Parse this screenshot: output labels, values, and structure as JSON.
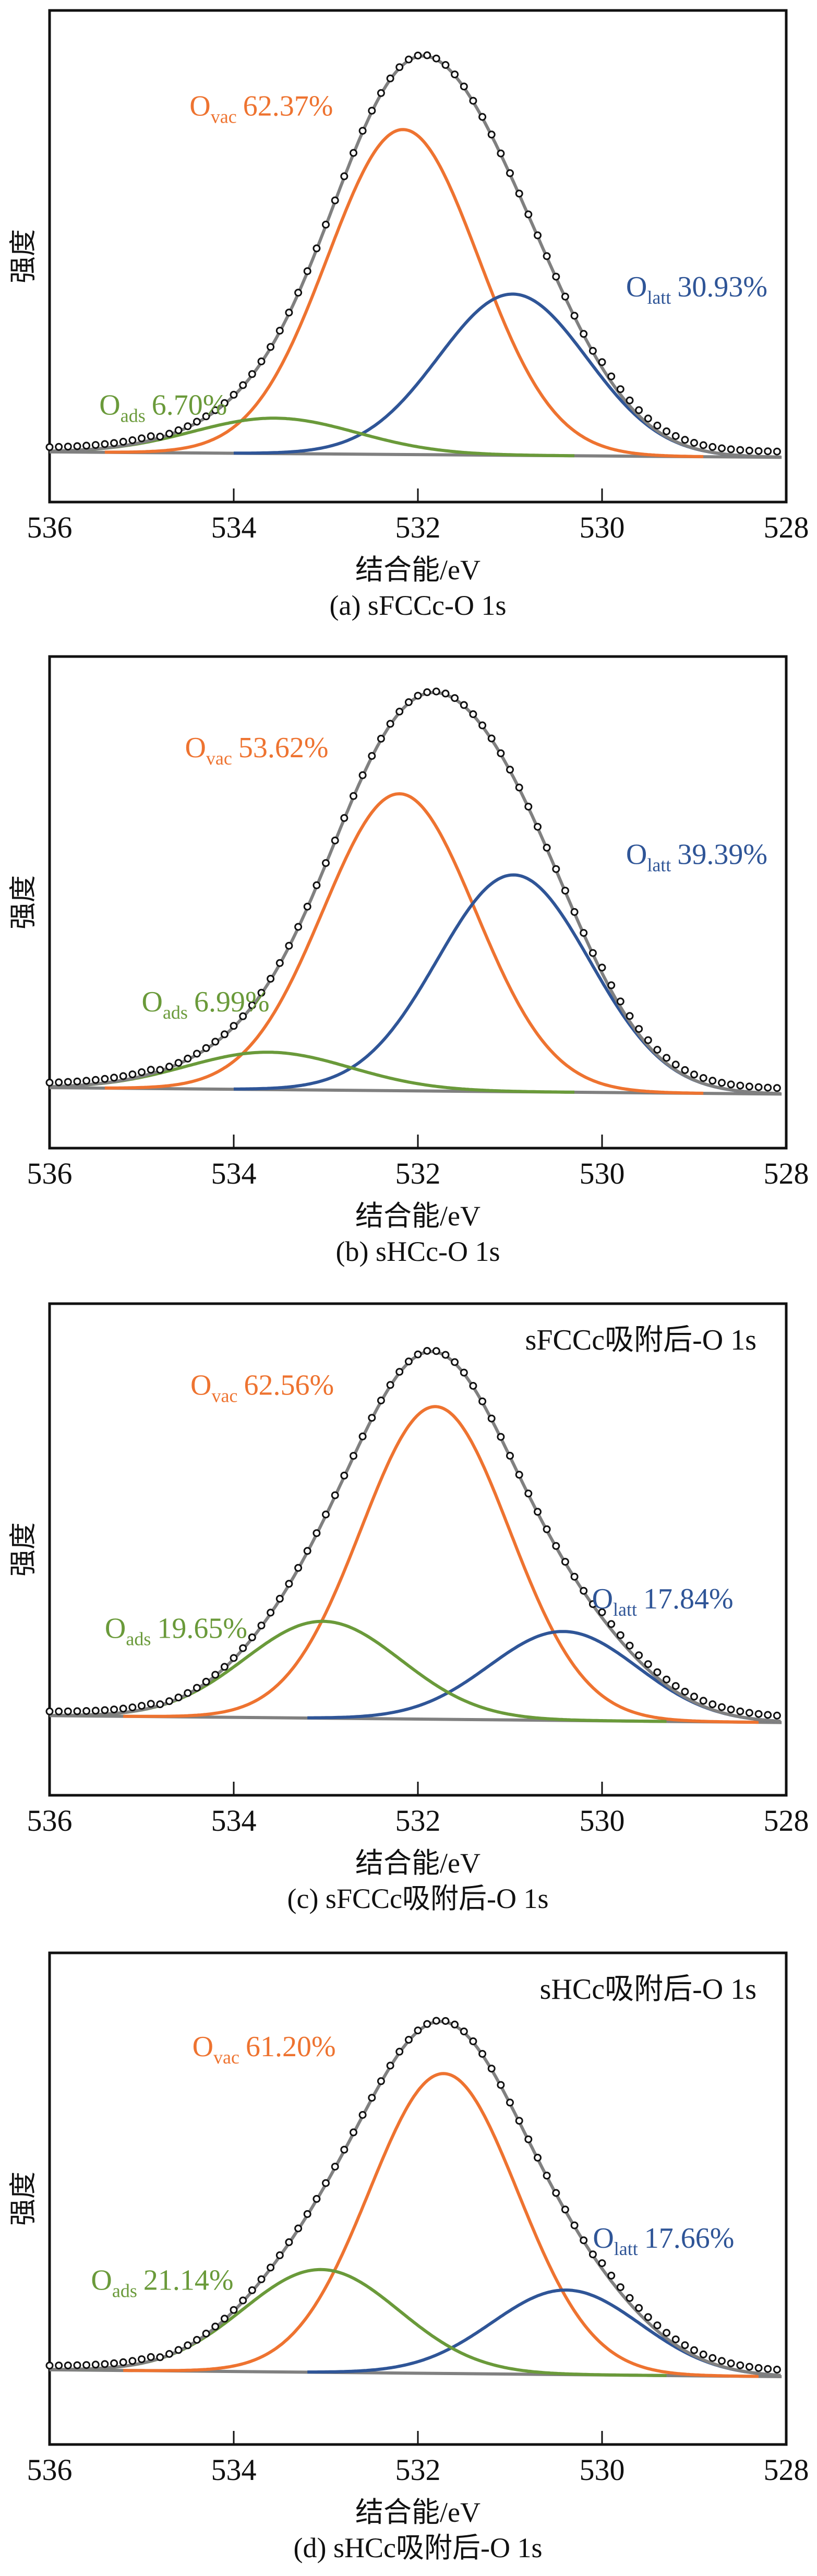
{
  "figure": {
    "panel_count": 4
  },
  "chart_data": [
    {
      "id": "a",
      "type": "line",
      "title": "",
      "caption": "(a) sFCCc-O 1s",
      "annotation": "",
      "xlabel": "结合能/eV",
      "ylabel": "强度",
      "xlim": [
        536,
        528
      ],
      "x_reversed": true,
      "ylim": [
        0,
        100
      ],
      "y_units": "relative intensity (a.u., no ticks)",
      "xticks": [
        536,
        534,
        532,
        530,
        528
      ],
      "xtick_labels": [
        "536",
        "534",
        "532",
        "530",
        "528"
      ],
      "grid": false,
      "baseline": {
        "x": [
          536,
          528.05
        ],
        "y": [
          10.2,
          9.1
        ]
      },
      "measured_points": {
        "x_start": 536.0,
        "x_end": 528.05,
        "step": 0.1,
        "marker": "open-circle"
      },
      "series": [
        {
          "name": "O_vac",
          "label_main": "O",
          "label_sub": "vac",
          "label_value": "62.37%",
          "color": "#EE7330",
          "center_eV": 532.16,
          "height": 66.1,
          "fwhm_eV": 1.93,
          "x_range": [
            535.4,
            528.9
          ]
        },
        {
          "name": "O_latt",
          "label_main": "O",
          "label_sub": "latt",
          "label_value": "30.93%",
          "color": "#2F5597",
          "center_eV": 530.97,
          "height": 32.8,
          "fwhm_eV": 1.9,
          "x_range": [
            534.0,
            528.4
          ]
        },
        {
          "name": "O_ads",
          "label_main": "O",
          "label_sub": "ads",
          "label_value": "6.70%",
          "color": "#6A9A3A",
          "center_eV": 533.55,
          "height": 7.2,
          "fwhm_eV": 2.1,
          "x_range": [
            535.6,
            530.3
          ]
        },
        {
          "name": "envelope",
          "color": "#808080",
          "type": "fit-sum"
        }
      ],
      "label_positions_eV": {
        "O_vac": [
          534.48,
          78.6
        ],
        "O_latt": [
          529.74,
          41.8
        ],
        "O_ads": [
          535.46,
          17.8
        ]
      }
    },
    {
      "id": "b",
      "type": "line",
      "title": "",
      "caption": "(b) sHCc-O 1s",
      "annotation": "",
      "xlabel": "结合能/eV",
      "ylabel": "强度",
      "xlim": [
        536,
        528
      ],
      "x_reversed": true,
      "ylim": [
        0,
        100
      ],
      "y_units": "relative intensity (a.u., no ticks)",
      "xticks": [
        536,
        534,
        532,
        530,
        528
      ],
      "xtick_labels": [
        "536",
        "534",
        "532",
        "530",
        "528"
      ],
      "grid": false,
      "baseline": {
        "x": [
          536,
          528.05
        ],
        "y": [
          12.3,
          11.0
        ]
      },
      "measured_points": {
        "x_start": 536.0,
        "x_end": 528.05,
        "step": 0.1,
        "marker": "open-circle"
      },
      "series": [
        {
          "name": "O_vac",
          "label_main": "O",
          "label_sub": "vac",
          "label_value": "53.62%",
          "color": "#EE7330",
          "center_eV": 532.2,
          "height": 60.4,
          "fwhm_eV": 1.95,
          "x_range": [
            535.4,
            528.9
          ]
        },
        {
          "name": "O_latt",
          "label_main": "O",
          "label_sub": "latt",
          "label_value": "39.39%",
          "color": "#2F5597",
          "center_eV": 530.96,
          "height": 44.1,
          "fwhm_eV": 1.95,
          "x_range": [
            534.0,
            528.4
          ]
        },
        {
          "name": "O_ads",
          "label_main": "O",
          "label_sub": "ads",
          "label_value": "6.99%",
          "color": "#6A9A3A",
          "center_eV": 533.62,
          "height": 7.6,
          "fwhm_eV": 2.1,
          "x_range": [
            535.6,
            530.3
          ]
        },
        {
          "name": "envelope",
          "color": "#808080",
          "type": "fit-sum"
        }
      ],
      "label_positions_eV": {
        "O_vac": [
          534.53,
          79.5
        ],
        "O_latt": [
          529.74,
          57.8
        ],
        "O_ads": [
          535.0,
          27.8
        ]
      }
    },
    {
      "id": "c",
      "type": "line",
      "title": "",
      "caption": "(c) sFCCc吸附后-O 1s",
      "annotation": "sFCCc吸附后-O 1s",
      "xlabel": "结合能/eV",
      "ylabel": "强度",
      "xlim": [
        536,
        528
      ],
      "x_reversed": true,
      "ylim": [
        0,
        100
      ],
      "y_units": "relative intensity (a.u., no ticks)",
      "xticks": [
        536,
        534,
        532,
        530,
        528
      ],
      "xtick_labels": [
        "536",
        "534",
        "532",
        "530",
        "528"
      ],
      "grid": false,
      "baseline": {
        "x": [
          536,
          528.05
        ],
        "y": [
          16.2,
          14.8
        ]
      },
      "measured_points": {
        "x_start": 536.0,
        "x_end": 528.05,
        "step": 0.1,
        "marker": "open-circle"
      },
      "series": [
        {
          "name": "O_vac",
          "label_main": "O",
          "label_sub": "vac",
          "label_value": "62.56%",
          "color": "#EE7330",
          "center_eV": 531.81,
          "height": 63.6,
          "fwhm_eV": 1.9,
          "x_range": [
            535.2,
            528.3
          ]
        },
        {
          "name": "O_latt",
          "label_main": "O",
          "label_sub": "latt",
          "label_value": "17.84%",
          "color": "#2F5597",
          "center_eV": 530.42,
          "height": 18.1,
          "fwhm_eV": 1.9,
          "x_range": [
            533.2,
            528.1
          ]
        },
        {
          "name": "O_ads",
          "label_main": "O",
          "label_sub": "ads",
          "label_value": "19.65%",
          "color": "#6A9A3A",
          "center_eV": 533.03,
          "height": 19.7,
          "fwhm_eV": 2.0,
          "x_range": [
            535.7,
            529.3
          ]
        },
        {
          "name": "envelope",
          "color": "#808080",
          "type": "fit-sum"
        }
      ],
      "label_positions_eV": {
        "O_vac": [
          534.47,
          81.5
        ],
        "O_latt": [
          530.11,
          38.0
        ],
        "O_ads": [
          535.4,
          32.0
        ]
      }
    },
    {
      "id": "d",
      "type": "line",
      "title": "",
      "caption": "(d) sHCc吸附后-O 1s",
      "annotation": "sHCc吸附后-O 1s",
      "xlabel": "结合能/eV",
      "ylabel": "强度",
      "xlim": [
        536,
        528
      ],
      "x_reversed": true,
      "ylim": [
        0,
        100
      ],
      "y_units": "relative intensity (a.u., no ticks)",
      "xticks": [
        536,
        534,
        532,
        530,
        528
      ],
      "xtick_labels": [
        "536",
        "534",
        "532",
        "530",
        "528"
      ],
      "grid": false,
      "baseline": {
        "x": [
          536,
          528.05
        ],
        "y": [
          15.2,
          13.8
        ]
      },
      "measured_points": {
        "x_start": 536.0,
        "x_end": 528.05,
        "step": 0.1,
        "marker": "open-circle"
      },
      "series": [
        {
          "name": "O_vac",
          "label_main": "O",
          "label_sub": "vac",
          "label_value": "61.20%",
          "color": "#EE7330",
          "center_eV": 531.72,
          "height": 61.0,
          "fwhm_eV": 1.9,
          "x_range": [
            535.2,
            528.3
          ]
        },
        {
          "name": "O_latt",
          "label_main": "O",
          "label_sub": "latt",
          "label_value": "17.66%",
          "color": "#2F5597",
          "center_eV": 530.39,
          "height": 17.2,
          "fwhm_eV": 1.9,
          "x_range": [
            533.2,
            528.1
          ]
        },
        {
          "name": "O_ads",
          "label_main": "O",
          "label_sub": "ads",
          "label_value": "21.14%",
          "color": "#6A9A3A",
          "center_eV": 533.05,
          "height": 20.9,
          "fwhm_eV": 2.0,
          "x_range": [
            535.7,
            529.3
          ]
        },
        {
          "name": "envelope",
          "color": "#808080",
          "type": "fit-sum"
        }
      ],
      "label_positions_eV": {
        "O_vac": [
          534.45,
          79.0
        ],
        "O_latt": [
          530.1,
          40.0
        ],
        "O_ads": [
          535.55,
          31.5
        ]
      }
    }
  ]
}
